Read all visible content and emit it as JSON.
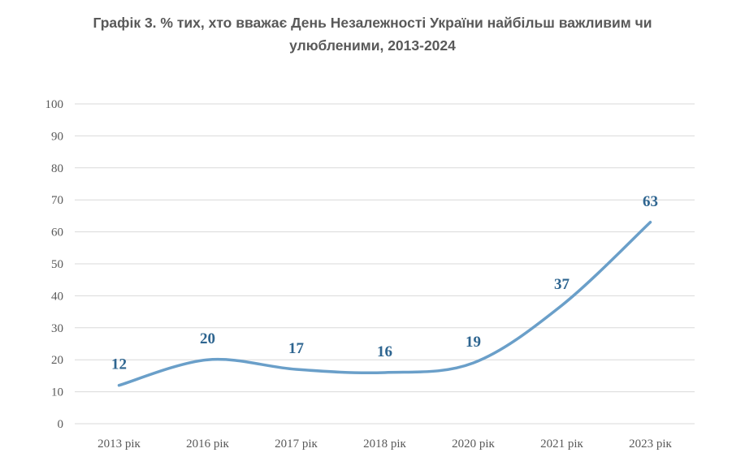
{
  "chart_data": {
    "type": "line",
    "title_line1": "Графік 3.  % тих, хто вважає День Незалежності України найбільш важливим чи",
    "title_line2": "улюбленими, 2013-2024",
    "categories": [
      "2013 рік",
      "2016 рік",
      "2017 рік",
      "2018 рік",
      "2020 рік",
      "2021 рік",
      "2023 рік"
    ],
    "series": [
      {
        "values": [
          12,
          20,
          17,
          16,
          19,
          37,
          63
        ]
      }
    ],
    "ylim": [
      0,
      100
    ],
    "yticks": [
      0,
      10,
      20,
      30,
      40,
      50,
      60,
      70,
      80,
      90,
      100
    ],
    "grid": true,
    "legend": "none",
    "line_color": "#6a9fc9",
    "label_color": "#2e6590",
    "grid_color": "#d9d9d9",
    "smooth": true
  }
}
